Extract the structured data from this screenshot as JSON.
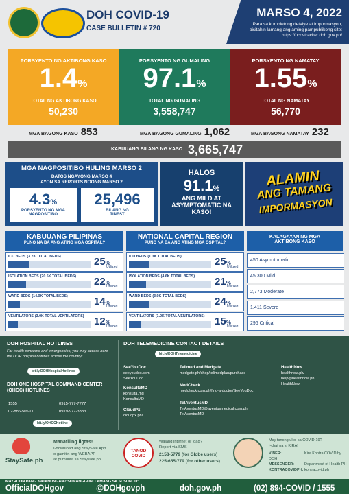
{
  "header": {
    "title": "DOH COVID-19",
    "bulletin": "CASE BULLETIN # 720",
    "date": "MARSO 4, 2022",
    "note": [
      "Para sa kumpletong detalye at impormasyon,",
      "bisitahin lamang ang aming pampublikong site:",
      "https://ncovtracker.doh.gov.ph/"
    ]
  },
  "stats": [
    {
      "label": "PORSYENTO NG AKTIBONG KASO",
      "pct": "1.4",
      "unit": "%",
      "total_label": "TOTAL NG AKTIBONG KASO",
      "total": "50,230",
      "new_label": "MGA BAGONG KASO",
      "new": "853"
    },
    {
      "label": "PORSYENTO NG GUMALING",
      "pct": "97.1",
      "unit": "%",
      "total_label": "TOTAL NG GUMALING",
      "total": "3,558,747",
      "new_label": "MGA BAGONG GUMALING",
      "new": "1,062"
    },
    {
      "label": "PORSYENTO NG NAMATAY",
      "pct": "1.55",
      "unit": "%",
      "total_label": "TOTAL NG NAMATAY",
      "total": "56,770",
      "new_label": "MGA BAGONG NAMATAY",
      "new": "232"
    }
  ],
  "total": {
    "label": "KABUUANG BILANG NG KASO",
    "value": "3,665,747"
  },
  "positivity": {
    "title": "MGA NAGPOSITIBO HULING MARSO 2",
    "subtitle": [
      "DATOS NGAYONG MARSO 4",
      "AYON SA REPORTS NOONG MARSO 2"
    ],
    "rate": "4.3",
    "unit": "%",
    "rate_label": "PORSYENTO NG MGA NAGPOSITIBO",
    "tested": "25,496",
    "tested_label": "BILANG NG TINEST"
  },
  "mild": {
    "intro": "HALOS",
    "pct": "91.1",
    "unit": "%",
    "text": "ANG MILD AT ASYMPTOMATIC NA KASO!"
  },
  "banner": [
    "ALAMIN",
    "ANG TAMANG",
    "IMPORMASYON"
  ],
  "hospitals": [
    {
      "title": "KABUUANG PILIPINAS",
      "subtitle": "PUNO NA BA ANG ATING MGA OSPITAL?",
      "unit": "%",
      "utilized": "Utilized",
      "rows": [
        {
          "label": "ICU BEDS",
          "total": "(3.7K TOTAL BEDS)",
          "pct": 25
        },
        {
          "label": "ISOLATION BEDS",
          "total": "(20.5K TOTAL BEDS)",
          "pct": 22
        },
        {
          "label": "WARD BEDS",
          "total": "(14.0K TOTAL BEDS)",
          "pct": 14
        },
        {
          "label": "VENTILATORS",
          "total": "(3.0K TOTAL VENTILATORS)",
          "pct": 12
        }
      ]
    },
    {
      "title": "NATIONAL CAPITAL REGION",
      "subtitle": "PUNO NA BA ANG ATING MGA OSPITAL?",
      "unit": "%",
      "utilized": "Utilized",
      "rows": [
        {
          "label": "ICU BEDS",
          "total": "(1.3K TOTAL BEDS)",
          "pct": 25
        },
        {
          "label": "ISOLATION BEDS",
          "total": "(4.6K TOTAL BEDS)",
          "pct": 21
        },
        {
          "label": "WARD BEDS",
          "total": "(3.9K TOTAL BEDS)",
          "pct": 24
        },
        {
          "label": "VENTILATORS",
          "total": "(1.0K TOTAL VENTILATORS)",
          "pct": 15
        }
      ]
    }
  ],
  "severity": {
    "title": "KALAGAYAN NG MGA AKTIBONG KASO",
    "items": [
      "450 Asymptomatic",
      "45,300 Mild",
      "2,773 Moderate",
      "1,411 Severe",
      "296 Critical"
    ]
  },
  "hotlines": {
    "title": "DOH HOSPITAL HOTLINES",
    "text": "For health concerns and emergencies, you may access here the DOH hospital hotlines across the country:",
    "link": "bit.ly/DOHHospitalHotlines",
    "ohcc_title": "DOH ONE HOSPITAL COMMAND CENTER (OHCC) HOTLINES",
    "numbers": [
      "1555",
      "0915-777-7777",
      "02-886-505-00",
      "0919-977-3333"
    ],
    "ohcc_link": "bit.ly/OHCCHotline"
  },
  "telemedicine": {
    "title": "DOH TELEMEDICINE CONTACT DETAILS",
    "link": "bit.ly/DOHTelemedicine",
    "providers": [
      {
        "name": "SeeYouDoc",
        "lines": [
          "seeyoudoc.com",
          "SeeYouDoc"
        ]
      },
      {
        "name": "KonsultaMD",
        "lines": [
          "konsulta.md",
          "KonsultaMD"
        ]
      },
      {
        "name": "CloudPx",
        "lines": [
          "cloudpx.ph/"
        ]
      },
      {
        "name": "Telimed and Medgate",
        "lines": [
          "medgate.ph/shop/telimedplan/purchase"
        ]
      },
      {
        "name": "MedCheck",
        "lines": [
          "medcheck.com.ph/find-a-doctor/SeeYouDoc"
        ]
      },
      {
        "name": "TelAventusMD",
        "lines": [
          "TelAventusMD@aventusmedical.com.ph",
          "TelAventusMD"
        ]
      },
      {
        "name": "HealthNow",
        "lines": [
          "healthnow.ph/",
          "help@healthnow.ph",
          "HealthNow"
        ]
      }
    ]
  },
  "footer": {
    "staysafe": {
      "logo": "StaySafe.ph",
      "lines": [
        "Manatiling ligtas!",
        "I-download ang StaySafe App",
        "o gamitin ang WEBAPP",
        "at pumunta sa Staysafe.ph"
      ]
    },
    "tanod": {
      "logo": "TANOD COVID",
      "lines": [
        "Walang internet or load?",
        "Report via SMS",
        "2158-5779 (for Globe users)",
        "225-655-779 (for other users)"
      ]
    },
    "kira": {
      "lines": [
        "May tanong ukol sa COVID-19?",
        "I-chat na si KIRA!"
      ],
      "rows": [
        [
          "VIBER:",
          "Kira Kontra COVID by DOH"
        ],
        [
          "MESSENGER:",
          "Department of Health PH"
        ],
        [
          "KONTRACOVIDPH:",
          "kontracovid.ph"
        ]
      ]
    }
  },
  "contact": {
    "label": "MAYROON PANG KATANUNGAN? SUMANGGUNI LAMANG SA SUSUNOD:",
    "items": [
      "OfficialDOHgov",
      "@DOHgovph",
      "doh.gov.ph",
      "(02) 894-COVID / 1555"
    ]
  }
}
